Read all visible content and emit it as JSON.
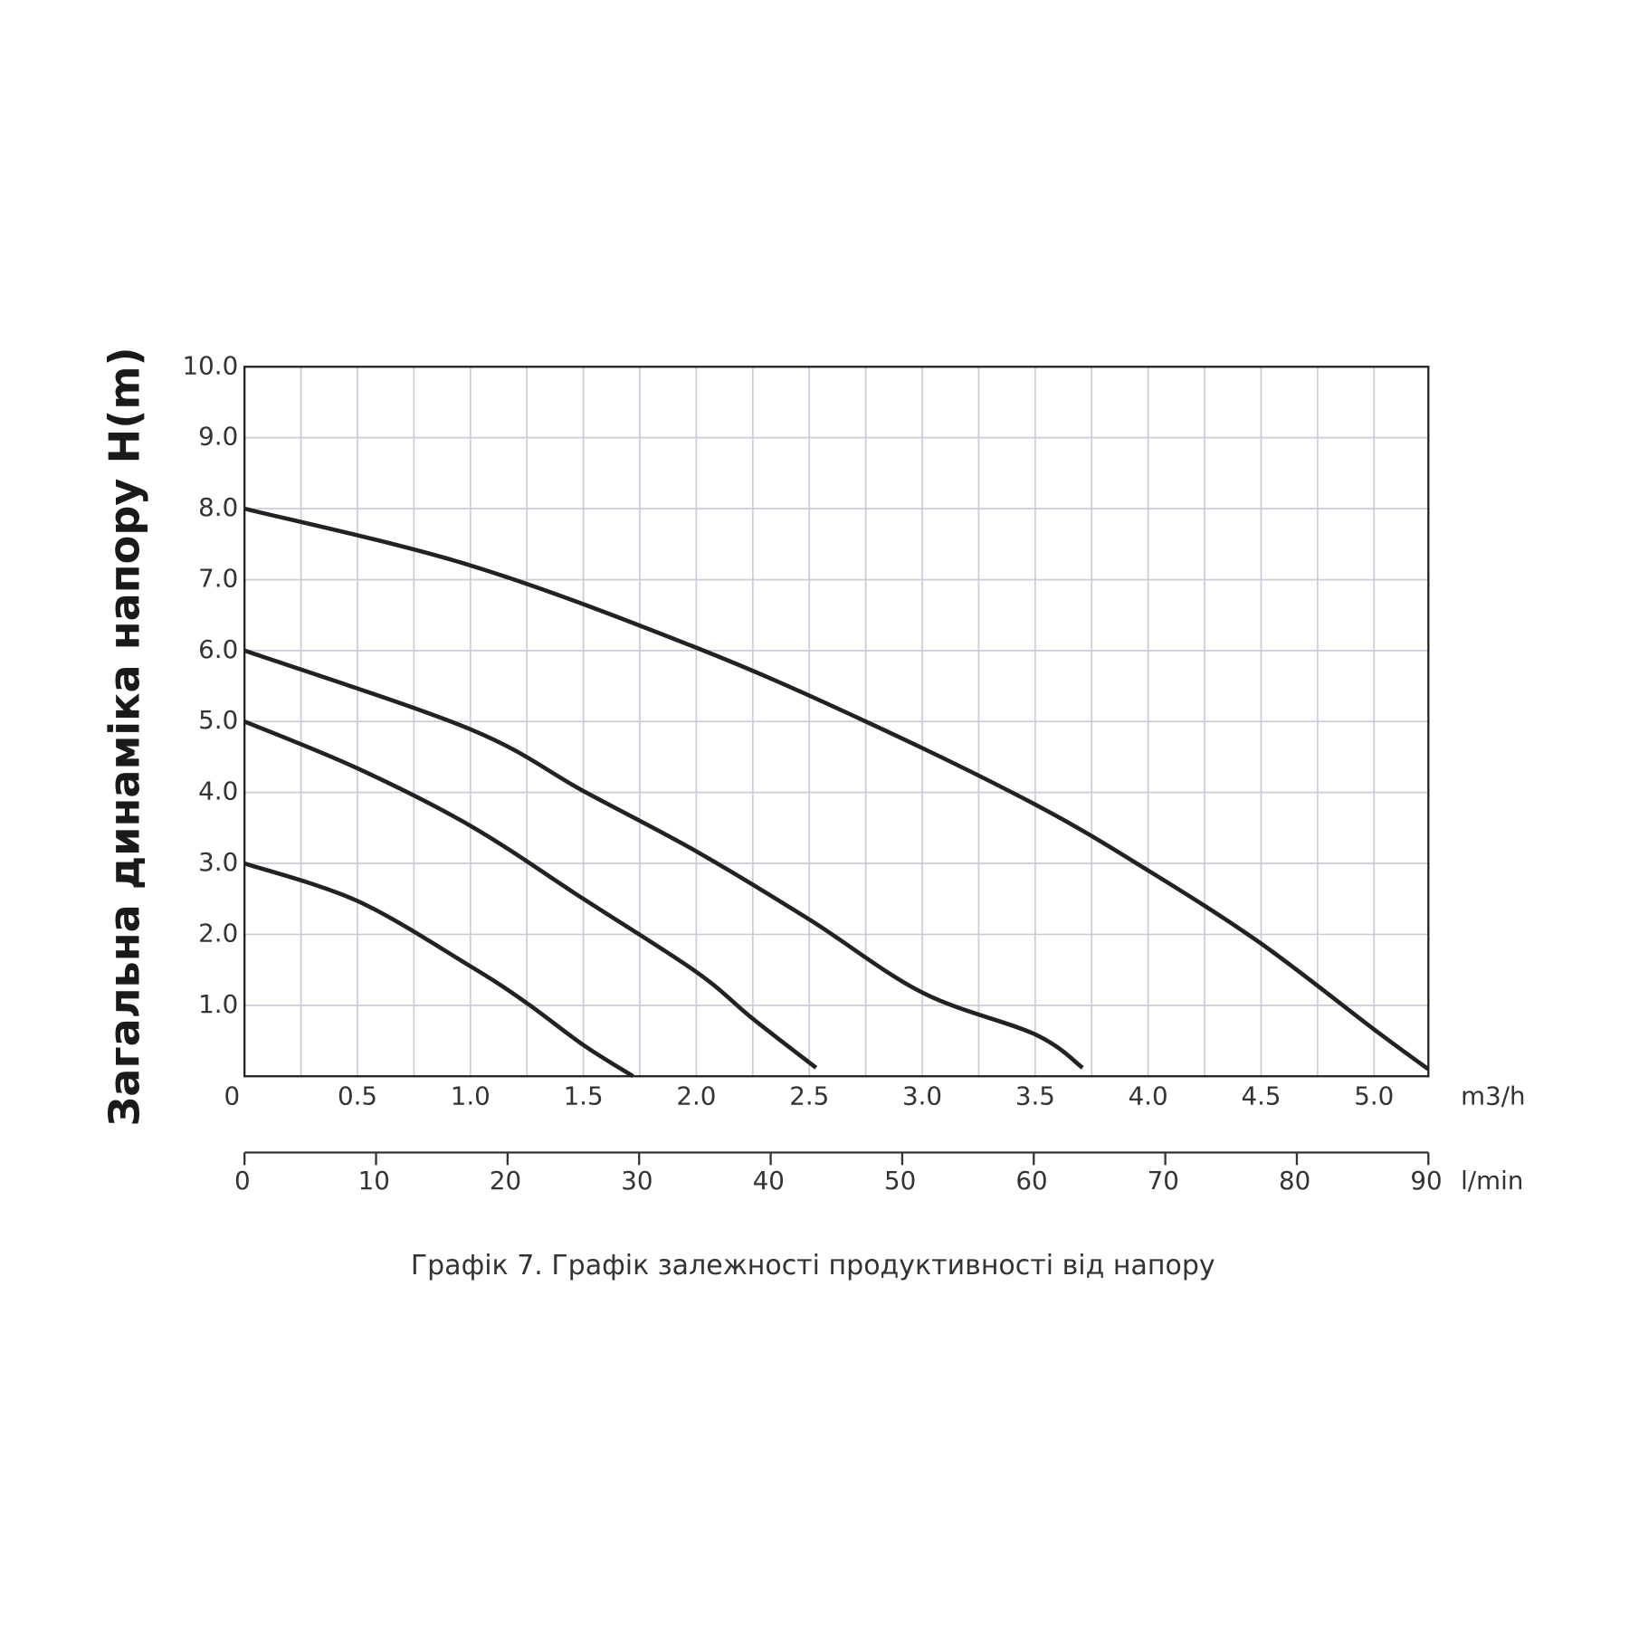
{
  "chart_data": {
    "type": "line",
    "ylabel": "Загальна динаміка напору H(m)",
    "caption": "Графік 7. Графік залежності продуктивності від напору",
    "xlabel": "m3/h",
    "x2label": "l/min",
    "xlim": [
      0,
      5.25
    ],
    "xticks": [
      0,
      0.5,
      {
        "value": 1,
        "label": "1.0"
      },
      1.5,
      {
        "value": 2,
        "label": "2.0"
      },
      2.5,
      {
        "value": 3,
        "label": "3.0"
      },
      3.5,
      {
        "value": 4,
        "label": "4.0"
      },
      4.5,
      {
        "value": 5,
        "label": "5.0"
      }
    ],
    "x_minor_gridlines": [
      0.25,
      0.75,
      1.25,
      1.75,
      2.25,
      2.75,
      3.25,
      3.75,
      4.25,
      4.75
    ],
    "x2lim": [
      0,
      90
    ],
    "x2ticks": [
      0,
      10,
      20,
      30,
      40,
      50,
      60,
      70,
      80,
      90
    ],
    "ylim": [
      0,
      10
    ],
    "yticks": [
      {
        "value": 1,
        "label": "1.0"
      },
      {
        "value": 2,
        "label": "2.0"
      },
      {
        "value": 3,
        "label": "3.0"
      },
      {
        "value": 4,
        "label": "4.0"
      },
      {
        "value": 5,
        "label": "5.0"
      },
      {
        "value": 6,
        "label": "6.0"
      },
      {
        "value": 7,
        "label": "7.0"
      },
      {
        "value": 8,
        "label": "8.0"
      },
      {
        "value": 9,
        "label": "9.0"
      },
      {
        "value": 10,
        "label": "10.0"
      }
    ],
    "grid": true,
    "series": [
      {
        "color": "#222222",
        "x": [
          0,
          1.0,
          2.0,
          2.75,
          3.5,
          4.0,
          4.5,
          5.0,
          5.24
        ],
        "values": [
          8.0,
          7.2,
          6.04,
          5.0,
          3.83,
          2.9,
          1.87,
          0.66,
          0.1
        ]
      },
      {
        "color": "#222222",
        "x": [
          0,
          1.0,
          1.5,
          2.0,
          2.5,
          3.0,
          3.5,
          3.71
        ],
        "values": [
          6.0,
          4.89,
          4.02,
          3.17,
          2.21,
          1.18,
          0.59,
          0.12
        ]
      },
      {
        "color": "#222222",
        "x": [
          0,
          0.5,
          1.0,
          1.5,
          2.0,
          2.25,
          2.53
        ],
        "values": [
          5.0,
          4.34,
          3.53,
          2.5,
          1.47,
          0.81,
          0.12
        ]
      },
      {
        "color": "#222222",
        "x": [
          0,
          0.5,
          1.0,
          1.25,
          1.5,
          1.72
        ],
        "values": [
          3.0,
          2.47,
          1.55,
          1.03,
          0.44,
          0
        ]
      }
    ]
  }
}
